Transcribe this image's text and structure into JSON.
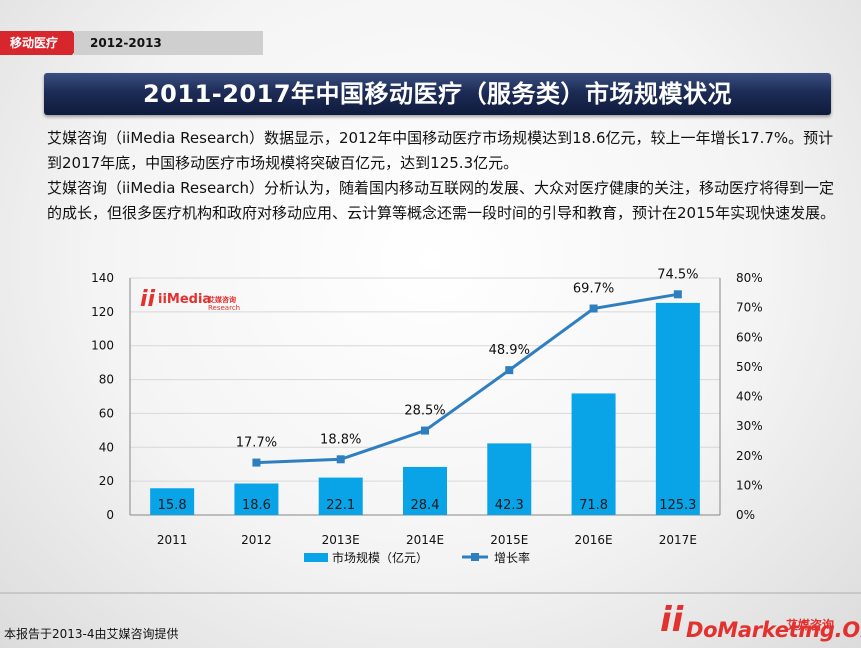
{
  "tag": {
    "category": "移动医疗",
    "period": "2012-2013"
  },
  "title": "2011-2017年中国移动医疗（服务类）市场规模状况",
  "description": [
    "艾媒咨询（iiMedia Research）数据显示，2012年中国移动医疗市场规模达到18.6亿元，较上一年增长17.7%。预计到2017年底，中国移动医疗市场规模将突破百亿元，达到125.3亿元。",
    "艾媒咨询（iiMedia Research）分析认为，随着国内移动互联网的发展、大众对医疗健康的关注，移动医疗将得到一定的成长，但很多医疗机构和政府对移动应用、云计算等概念还需一段时间的引导和教育，预计在2015年实现快速发展。"
  ],
  "chart_logo": {
    "brand": "iiMedia",
    "sub": "Research",
    "cn": "艾媒咨询"
  },
  "chart_data": {
    "type": "bar",
    "categories": [
      "2011",
      "2012",
      "2013E",
      "2014E",
      "2015E",
      "2016E",
      "2017E"
    ],
    "series": [
      {
        "name": "市场规模（亿元）",
        "type": "bar",
        "axis": "left",
        "values": [
          15.8,
          18.6,
          22.1,
          28.4,
          42.3,
          71.8,
          125.3
        ],
        "labels": [
          "15.8",
          "18.6",
          "22.1",
          "28.4",
          "42.3",
          "71.8",
          "125.3"
        ]
      },
      {
        "name": "增长率",
        "type": "line",
        "axis": "right",
        "values": [
          null,
          17.7,
          18.8,
          28.5,
          48.9,
          69.7,
          74.5
        ],
        "labels": [
          "",
          "17.7%",
          "18.8%",
          "28.5%",
          "48.9%",
          "69.7%",
          "74.5%"
        ]
      }
    ],
    "left_axis": {
      "ylim": [
        0,
        140
      ],
      "ticks": [
        "0",
        "20",
        "40",
        "60",
        "80",
        "100",
        "120",
        "140"
      ]
    },
    "right_axis": {
      "ylim": [
        0,
        80
      ],
      "ticks": [
        "0%",
        "10%",
        "20%",
        "30%",
        "40%",
        "50%",
        "60%",
        "70%",
        "80%"
      ]
    },
    "legend_position": "bottom",
    "grid": true,
    "colors": {
      "bar": "#09a3e8",
      "line": "#2f7fc0",
      "grid": "#d8d8d8"
    }
  },
  "footnote": "本报告于2013-4由艾媒咨询提供",
  "footer_logo": {
    "cn": "艾媒咨询",
    "watermark": "DoMarketing.Org"
  }
}
